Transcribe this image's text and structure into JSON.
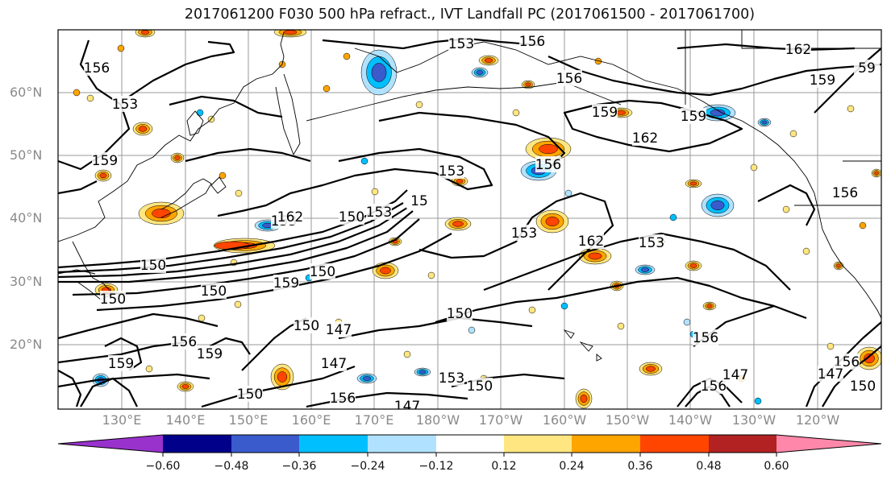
{
  "title": "2017061200 F030 500 hPa refract., IVT Landfall PC (2017061500 - 2017061700)",
  "lat_labels": [
    "60°N",
    "50°N",
    "40°N",
    "30°N",
    "20°N"
  ],
  "lon_labels": [
    "130°E",
    "140°E",
    "150°E",
    "160°E",
    "170°E",
    "180°W",
    "170°W",
    "160°W",
    "150°W",
    "140°W",
    "130°W",
    "120°W"
  ],
  "colorbar": {
    "ticks": [
      "−0.60",
      "−0.48",
      "−0.36",
      "−0.24",
      "−0.12",
      "0.12",
      "0.24",
      "0.36",
      "0.48",
      "0.60"
    ],
    "colors": [
      "#9932cc",
      "#00008b",
      "#3a5bcc",
      "#00bfff",
      "#b0e2ff",
      "#ffffff",
      "#ffe680",
      "#ffa500",
      "#ff4500",
      "#b22222",
      "#ff88aa"
    ]
  },
  "contour_labels": [
    "153",
    "156",
    "162",
    "159",
    "156",
    "153",
    "156",
    "159",
    "162",
    "159",
    "153",
    "156",
    "159",
    "150",
    "153",
    "150",
    "153",
    "162",
    "153",
    "15",
    "150",
    "159",
    "150",
    "162",
    "150",
    "153",
    "147",
    "156",
    "150",
    "159",
    "147",
    "150",
    "156",
    "147",
    "153",
    "150",
    "156",
    "156",
    "147",
    "156",
    "150",
    "147",
    "156",
    "150",
    "159",
    "59"
  ]
}
